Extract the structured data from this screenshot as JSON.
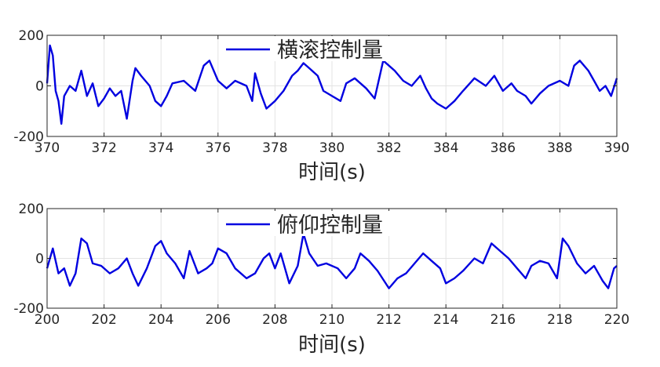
{
  "chart_data": [
    {
      "type": "line",
      "title": "",
      "xlabel": "时间(s)",
      "ylabel": "",
      "xlim": [
        370,
        390
      ],
      "ylim": [
        -200,
        200
      ],
      "xticks": [
        370,
        372,
        374,
        376,
        378,
        380,
        382,
        384,
        386,
        388,
        390
      ],
      "yticks": [
        -200,
        0,
        200
      ],
      "xtick_labels": [
        "370",
        "372",
        "374",
        "376",
        "378",
        "380",
        "382",
        "384",
        "386",
        "388",
        "390"
      ],
      "ytick_labels": [
        "-200",
        "0",
        "200"
      ],
      "grid": true,
      "legend": "top-center",
      "series": [
        {
          "name": "横滚控制量",
          "color": "#0000e0",
          "points": [
            [
              370.0,
              10
            ],
            [
              370.1,
              160
            ],
            [
              370.2,
              120
            ],
            [
              370.3,
              -20
            ],
            [
              370.4,
              -60
            ],
            [
              370.5,
              -150
            ],
            [
              370.6,
              -40
            ],
            [
              370.8,
              0
            ],
            [
              371.0,
              -20
            ],
            [
              371.2,
              60
            ],
            [
              371.4,
              -40
            ],
            [
              371.6,
              10
            ],
            [
              371.8,
              -80
            ],
            [
              372.0,
              -50
            ],
            [
              372.2,
              -10
            ],
            [
              372.4,
              -40
            ],
            [
              372.6,
              -20
            ],
            [
              372.8,
              -130
            ],
            [
              373.0,
              20
            ],
            [
              373.1,
              70
            ],
            [
              373.3,
              40
            ],
            [
              373.6,
              0
            ],
            [
              373.8,
              -60
            ],
            [
              374.0,
              -80
            ],
            [
              374.2,
              -40
            ],
            [
              374.4,
              10
            ],
            [
              374.8,
              20
            ],
            [
              375.2,
              -20
            ],
            [
              375.5,
              80
            ],
            [
              375.7,
              100
            ],
            [
              376.0,
              20
            ],
            [
              376.3,
              -10
            ],
            [
              376.6,
              20
            ],
            [
              377.0,
              0
            ],
            [
              377.2,
              -60
            ],
            [
              377.3,
              50
            ],
            [
              377.5,
              -30
            ],
            [
              377.7,
              -90
            ],
            [
              378.0,
              -60
            ],
            [
              378.3,
              -20
            ],
            [
              378.6,
              40
            ],
            [
              378.8,
              60
            ],
            [
              379.0,
              90
            ],
            [
              379.2,
              70
            ],
            [
              379.5,
              40
            ],
            [
              379.7,
              -20
            ],
            [
              380.0,
              -40
            ],
            [
              380.3,
              -60
            ],
            [
              380.5,
              10
            ],
            [
              380.8,
              30
            ],
            [
              381.2,
              -10
            ],
            [
              381.5,
              -50
            ],
            [
              381.8,
              100
            ],
            [
              382.0,
              80
            ],
            [
              382.2,
              60
            ],
            [
              382.5,
              20
            ],
            [
              382.8,
              0
            ],
            [
              383.1,
              40
            ],
            [
              383.3,
              -10
            ],
            [
              383.5,
              -50
            ],
            [
              383.7,
              -70
            ],
            [
              384.0,
              -90
            ],
            [
              384.3,
              -60
            ],
            [
              384.6,
              -20
            ],
            [
              385.0,
              30
            ],
            [
              385.4,
              0
            ],
            [
              385.7,
              40
            ],
            [
              386.0,
              -20
            ],
            [
              386.3,
              10
            ],
            [
              386.5,
              -20
            ],
            [
              386.8,
              -40
            ],
            [
              387.0,
              -70
            ],
            [
              387.3,
              -30
            ],
            [
              387.6,
              0
            ],
            [
              388.0,
              20
            ],
            [
              388.3,
              0
            ],
            [
              388.5,
              80
            ],
            [
              388.7,
              100
            ],
            [
              389.0,
              60
            ],
            [
              389.2,
              20
            ],
            [
              389.4,
              -20
            ],
            [
              389.6,
              0
            ],
            [
              389.8,
              -40
            ],
            [
              390.0,
              30
            ]
          ]
        }
      ]
    },
    {
      "type": "line",
      "title": "",
      "xlabel": "时间(s)",
      "ylabel": "",
      "xlim": [
        200,
        220
      ],
      "ylim": [
        -200,
        200
      ],
      "xticks": [
        200,
        202,
        204,
        206,
        208,
        210,
        212,
        214,
        216,
        218,
        220
      ],
      "yticks": [
        -200,
        0,
        200
      ],
      "xtick_labels": [
        "200",
        "202",
        "204",
        "206",
        "208",
        "210",
        "212",
        "214",
        "216",
        "218",
        "220"
      ],
      "ytick_labels": [
        "-200",
        "0",
        "200"
      ],
      "grid": true,
      "legend": "top-center",
      "series": [
        {
          "name": "俯仰控制量",
          "color": "#0000e0",
          "points": [
            [
              200.0,
              -40
            ],
            [
              200.2,
              40
            ],
            [
              200.4,
              -60
            ],
            [
              200.6,
              -40
            ],
            [
              200.8,
              -110
            ],
            [
              201.0,
              -60
            ],
            [
              201.2,
              80
            ],
            [
              201.4,
              60
            ],
            [
              201.6,
              -20
            ],
            [
              201.9,
              -30
            ],
            [
              202.2,
              -60
            ],
            [
              202.5,
              -40
            ],
            [
              202.8,
              0
            ],
            [
              203.0,
              -60
            ],
            [
              203.2,
              -110
            ],
            [
              203.5,
              -40
            ],
            [
              203.8,
              50
            ],
            [
              204.0,
              70
            ],
            [
              204.2,
              20
            ],
            [
              204.5,
              -20
            ],
            [
              204.8,
              -80
            ],
            [
              205.0,
              30
            ],
            [
              205.3,
              -60
            ],
            [
              205.6,
              -40
            ],
            [
              205.8,
              -20
            ],
            [
              206.0,
              40
            ],
            [
              206.3,
              20
            ],
            [
              206.6,
              -40
            ],
            [
              207.0,
              -80
            ],
            [
              207.3,
              -60
            ],
            [
              207.6,
              0
            ],
            [
              207.8,
              20
            ],
            [
              208.0,
              -40
            ],
            [
              208.2,
              20
            ],
            [
              208.5,
              -100
            ],
            [
              208.8,
              -30
            ],
            [
              209.0,
              100
            ],
            [
              209.2,
              20
            ],
            [
              209.5,
              -30
            ],
            [
              209.8,
              -20
            ],
            [
              210.2,
              -40
            ],
            [
              210.5,
              -80
            ],
            [
              210.8,
              -40
            ],
            [
              211.0,
              20
            ],
            [
              211.3,
              -10
            ],
            [
              211.6,
              -50
            ],
            [
              212.0,
              -120
            ],
            [
              212.3,
              -80
            ],
            [
              212.6,
              -60
            ],
            [
              212.9,
              -20
            ],
            [
              213.2,
              20
            ],
            [
              213.5,
              -10
            ],
            [
              213.8,
              -40
            ],
            [
              214.0,
              -100
            ],
            [
              214.3,
              -80
            ],
            [
              214.6,
              -50
            ],
            [
              215.0,
              0
            ],
            [
              215.3,
              -20
            ],
            [
              215.6,
              60
            ],
            [
              215.9,
              30
            ],
            [
              216.2,
              0
            ],
            [
              216.5,
              -40
            ],
            [
              216.8,
              -80
            ],
            [
              217.0,
              -30
            ],
            [
              217.3,
              -10
            ],
            [
              217.6,
              -20
            ],
            [
              217.9,
              -80
            ],
            [
              218.1,
              80
            ],
            [
              218.3,
              50
            ],
            [
              218.6,
              -20
            ],
            [
              218.9,
              -60
            ],
            [
              219.2,
              -30
            ],
            [
              219.5,
              -90
            ],
            [
              219.7,
              -120
            ],
            [
              219.9,
              -40
            ],
            [
              220.0,
              -30
            ]
          ]
        }
      ]
    }
  ]
}
